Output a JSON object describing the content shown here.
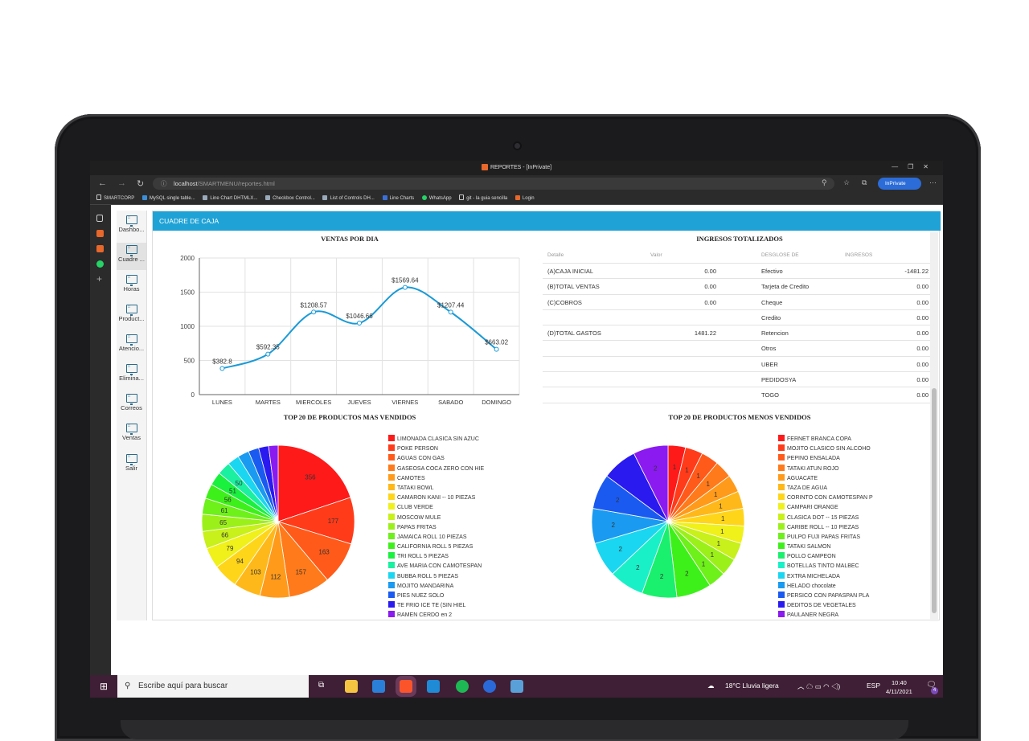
{
  "browser": {
    "tab_title": "REPORTES - [InPrivate]",
    "url_host": "localhost",
    "url_path": "/SMARTMENU/reportes.html",
    "inprivate_label": "InPrivate",
    "favorites": [
      "SMARTCORP",
      "MySQL single table...",
      "Line Chart DHTMLX...",
      "Checkbox Control...",
      "List of Controls DH...",
      "Line Charts",
      "WhatsApp",
      "git - la guia sencilla",
      "Login"
    ]
  },
  "sidebar": {
    "items": [
      "Dashbo...",
      "Cuadre ...",
      "Horas",
      "Product...",
      "Atencio...",
      "Elimina...",
      "Correos",
      "Ventas",
      "Salir"
    ]
  },
  "header": {
    "title": "CUADRE DE CAJA"
  },
  "ingresos": {
    "title": "INGRESOS TOTALIZADOS",
    "headers": [
      "Detalle",
      "Valor",
      "DESGLOSE DE",
      "INGRESOS"
    ],
    "rows": [
      {
        "detalle": "(A)CAJA INICIAL",
        "valor": "0.00",
        "desglose": "Efectivo",
        "ingreso": "-1481.22"
      },
      {
        "detalle": "(B)TOTAL VENTAS",
        "valor": "0.00",
        "desglose": "Tarjeta de Credito",
        "ingreso": "0.00"
      },
      {
        "detalle": "(C)COBROS",
        "valor": "0.00",
        "desglose": "Cheque",
        "ingreso": "0.00"
      },
      {
        "detalle": "",
        "valor": "",
        "desglose": "Credito",
        "ingreso": "0.00"
      },
      {
        "detalle": "(D)TOTAL GASTOS",
        "valor": "1481.22",
        "desglose": "Retencion",
        "ingreso": "0.00"
      },
      {
        "detalle": "",
        "valor": "",
        "desglose": "Otros",
        "ingreso": "0.00"
      },
      {
        "detalle": "",
        "valor": "",
        "desglose": "UBER",
        "ingreso": "0.00"
      },
      {
        "detalle": "",
        "valor": "",
        "desglose": "PEDIDOSYA",
        "ingreso": "0.00"
      },
      {
        "detalle": "",
        "valor": "",
        "desglose": "TOGO",
        "ingreso": "0.00"
      }
    ]
  },
  "chart_data": [
    {
      "type": "line",
      "title": "VENTAS POR DIA",
      "categories": [
        "LUNES",
        "MARTES",
        "MIERCOLES",
        "JUEVES",
        "VIERNES",
        "SABADO",
        "DOMINGO"
      ],
      "values": [
        382.8,
        592.35,
        1208.57,
        1046.66,
        1569.64,
        1207.44,
        663.02
      ],
      "data_labels": [
        "$382.8",
        "$592.35",
        "$1208.57",
        "$1046.66",
        "$1569.64",
        "$1207.44",
        "$663.02"
      ],
      "yticks": [
        "0",
        "500",
        "1000",
        "1500",
        "2000"
      ],
      "ylim": [
        0,
        2000
      ],
      "color": "#1a9ad6",
      "grid": true
    },
    {
      "type": "pie",
      "title": "TOP 20 DE PRODUCTOS MAS VENDIDOS",
      "labels": [
        "LIMONADA CLASICA SIN AZUC",
        "POKE PERSON",
        "AGUAS CON GAS",
        "GASEOSA COCA ZERO CON HIE",
        "CAMOTES",
        "TATAKI BOWL",
        "CAMARON KANI -- 10 PIEZAS",
        "CLUB VERDE",
        "MOSCOW MULE",
        "PAPAS FRITAS",
        "JAMAICA ROLL 10 PIEZAS",
        "CALIFORNIA ROLL 5 PIEZAS",
        "TRI ROLL 5 PIEZAS",
        "AVE MARIA CON CAMOTESPAN",
        "BUBBA ROLL 5 PIEZAS",
        "MOJITO MANDARINA",
        "PIES NUEZ SOLO",
        "TE FRIO ICE TE (SIN HIEL",
        "RAMEN CERDO en 2"
      ],
      "values": [
        356,
        177,
        163,
        157,
        112,
        103,
        94,
        79,
        66,
        65,
        61,
        56,
        51,
        50,
        45,
        43,
        40,
        38,
        36
      ],
      "slice_labels": [
        "356",
        "177",
        "163",
        "157",
        "112",
        "103",
        "94",
        "79",
        "66",
        "65",
        "61",
        "56",
        "51",
        "50",
        "",
        "",
        "",
        "",
        ""
      ],
      "colors": [
        "#ff1a1a",
        "#ff3b1a",
        "#ff5a1a",
        "#ff7a1a",
        "#ff9a1a",
        "#ffb81a",
        "#ffd51a",
        "#f0f01a",
        "#c8f01a",
        "#9cf01a",
        "#6ef01a",
        "#3ef01a",
        "#1af03e",
        "#1af0a0",
        "#1ad6f0",
        "#1a9af0",
        "#1a5af0",
        "#2a1af0",
        "#8a1af0"
      ]
    },
    {
      "type": "pie",
      "title": "TOP 20 DE PRODUCTOS MENOS VENDIDOS",
      "labels": [
        "FERNET BRANCA COPA",
        "MOJITO CLASICO SIN ALCOHO",
        "PEPINO ENSALADA",
        "TATAKI ATUN ROJO",
        "AGUACATE",
        "TAZA DE AGUA",
        "CORINTO CON CAMOTESPAN P",
        "CAMPARI ORANGE",
        "CLASICA DOT -- 15 PIEZAS",
        "CARIBE ROLL -- 10 PIEZAS",
        "PULPO FUJI PAPAS FRITAS",
        "TATAKI SALMON",
        "POLLO CAMPEON",
        "BOTELLAS TINTO MALBEC",
        "EXTRA MICHELADA",
        "HELADO chocolate",
        "PERSICO CON PAPASPAN PLA",
        "DEDITOS DE VEGETALES",
        "PAULANER NEGRA"
      ],
      "values": [
        1,
        1,
        1,
        1,
        1,
        1,
        1,
        1,
        1,
        1,
        1,
        2,
        2,
        2,
        2,
        2,
        2,
        2,
        2
      ],
      "slice_labels": [
        "1",
        "1",
        "1",
        "1",
        "1",
        "1",
        "1",
        "1",
        "1",
        "1",
        "1",
        "2",
        "2",
        "2",
        "2",
        "2",
        "2",
        "",
        "2"
      ],
      "colors": [
        "#ff1a1a",
        "#ff3b1a",
        "#ff5a1a",
        "#ff7a1a",
        "#ff9a1a",
        "#ffb81a",
        "#ffd51a",
        "#f0f01a",
        "#c8f01a",
        "#9cf01a",
        "#6ef01a",
        "#3ef01a",
        "#1af06e",
        "#1af0c8",
        "#1ad6f0",
        "#1a9af0",
        "#1a5af0",
        "#2a1af0",
        "#8a1af0"
      ]
    }
  ],
  "taskbar": {
    "search_placeholder": "Escribe aquí para buscar",
    "weather": "18°C  Lluvia ligera",
    "lang": "ESP",
    "time": "10:40",
    "date": "4/11/2021",
    "notifications": "4"
  }
}
